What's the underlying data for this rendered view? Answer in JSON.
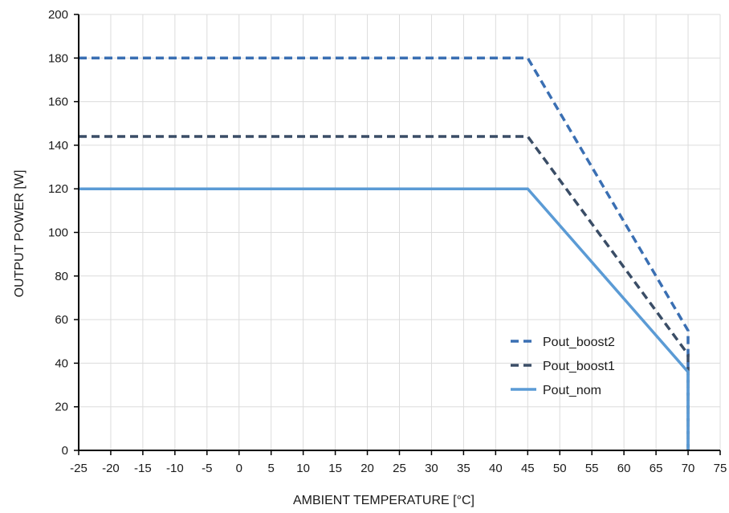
{
  "chart_data": {
    "type": "line",
    "xlabel": "AMBIENT TEMPERATURE [°C]",
    "ylabel": "OUTPUT POWER [W]",
    "xlim": [
      -25,
      75
    ],
    "ylim": [
      0,
      200
    ],
    "xticks": [
      -25,
      -20,
      -15,
      -10,
      -5,
      0,
      5,
      10,
      15,
      20,
      25,
      30,
      35,
      40,
      45,
      50,
      55,
      60,
      65,
      70,
      75
    ],
    "yticks": [
      0,
      20,
      40,
      60,
      80,
      100,
      120,
      140,
      160,
      180,
      200
    ],
    "grid": true,
    "legend_position": "bottom-right",
    "series": [
      {
        "name": "Pout_boost2",
        "color": "#3a6fb3",
        "dash": "dashed",
        "x": [
          -25,
          45,
          70,
          70
        ],
        "y": [
          180,
          180,
          55,
          0
        ]
      },
      {
        "name": "Pout_boost1",
        "color": "#3a4d66",
        "dash": "dashed",
        "x": [
          -25,
          45,
          70,
          70
        ],
        "y": [
          144,
          144,
          44,
          0
        ]
      },
      {
        "name": "Pout_nom",
        "color": "#5b9bd5",
        "dash": "solid",
        "x": [
          -25,
          45,
          70,
          70
        ],
        "y": [
          120,
          120,
          36,
          0
        ]
      }
    ]
  }
}
